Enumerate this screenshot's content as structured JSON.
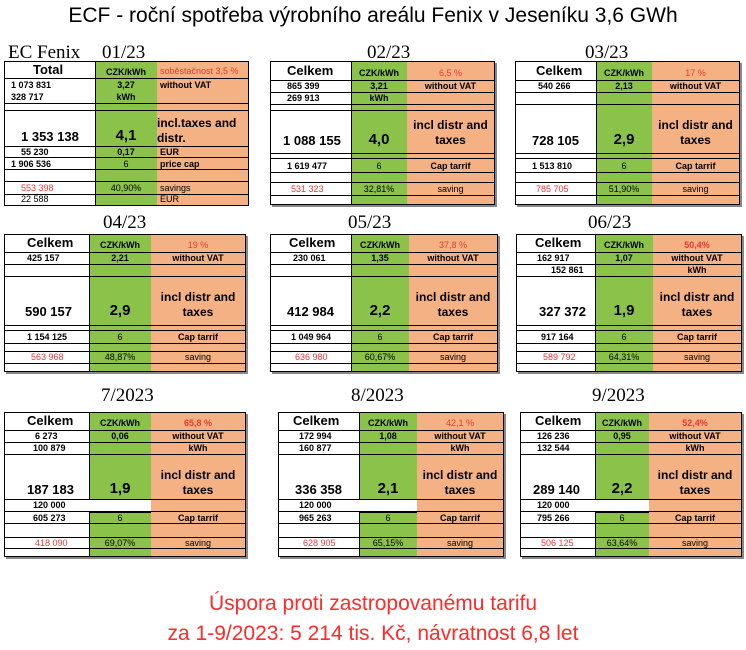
{
  "title": "ECF - roční spotřeba výrobního areálu Fenix v Jeseníku 3,6 GWh",
  "ec_label": "EC Fenix",
  "months": [
    {
      "label": "01/23",
      "header": "Total",
      "price_hdr": "CZK/kWh",
      "pct": "soběstačnost 3,5 %",
      "r1": "1 073 831",
      "r1p": "3,27",
      "r1n": "without VAT",
      "r2": "328 717",
      "r2p": "kWh",
      "main": "1 353 138",
      "mainp": "4,1",
      "mainn": "incl.taxes and distr.",
      "eur": "55 230",
      "eurp": "0,17",
      "eurn": "EUR",
      "cap": "1 906 536",
      "capp": "6",
      "capn": "price cap",
      "sav": "553 398",
      "savp": "40,90%",
      "savn": "savings",
      "eur2": "22 588",
      "eur2n": "EUR"
    },
    {
      "label": "02/23",
      "header": "Celkem",
      "price_hdr": "CZK/kWh",
      "pct": "6,5 %",
      "r1": "865 399",
      "r1p": "3,21",
      "r1n": "without  VAT",
      "r2": "269 913",
      "r2p": "kWh",
      "main": "1 088 155",
      "mainp": "4,0",
      "mainn": "incl distr and taxes",
      "cap": "1 619 477",
      "capp": "6",
      "capn": "Cap tarrif",
      "sav": "531 323",
      "savp": "32,81%",
      "savn": "saving"
    },
    {
      "label": "03/23",
      "header": "Celkem",
      "price_hdr": "CZK/kWh",
      "pct": "17 %",
      "r1": "540 266",
      "r1p": "2,13",
      "r1n": "without  VAT",
      "main": "728 105",
      "mainp": "2,9",
      "mainn": "incl distr and taxes",
      "cap": "1 513 810",
      "capp": "6",
      "capn": "Cap tarrif",
      "sav": "785 705",
      "savp": "51,90%",
      "savn": "saving"
    },
    {
      "label": "04/23",
      "header": "Celkem",
      "price_hdr": "CZK/kWh",
      "pct": "19 %",
      "r1": "425 157",
      "r1p": "2,21",
      "r1n": "without  VAT",
      "main": "590 157",
      "mainp": "2,9",
      "mainn": "incl distr and taxes",
      "cap": "1 154 125",
      "capp": "6",
      "capn": "Cap tarrif",
      "sav": "563 968",
      "savp": "48,87%",
      "savn": "saving"
    },
    {
      "label": "05/23",
      "header": "Celkem",
      "price_hdr": "CZK/kWh",
      "pct": "37,8 %",
      "r1": "230 061",
      "r1p": "1,35",
      "r1n": "without  VAT",
      "main": "412 984",
      "mainp": "2,2",
      "mainn": "incl distr and taxes",
      "cap": "1 049 964",
      "capp": "6",
      "capn": "Cap tarrif",
      "sav": "636 980",
      "savp": "60,67%",
      "savn": "saving"
    },
    {
      "label": "06/23",
      "header": "Celkem",
      "price_hdr": "CZK/kWh",
      "pct": "50,4%",
      "r1": "162 917",
      "r1p": "1,07",
      "r1n": "without  VAT",
      "r2": "152 861",
      "r2n": "kWh",
      "main": "327 372",
      "mainp": "1,9",
      "mainn": "incl distr and taxes",
      "cap": "917 164",
      "capp": "6",
      "capn": "Cap tarrif",
      "sav": "589 792",
      "savp": "64,31%",
      "savn": "saving"
    },
    {
      "label": "7/2023",
      "header": "Celkem",
      "price_hdr": "CZK/kWh",
      "pct": "65,8 %",
      "r1": "6 273",
      "r1p": "0,06",
      "r1n": "without  VAT",
      "r2": "100 879",
      "r2n": "kWh",
      "main": "187 183",
      "mainp": "1,9",
      "mainn": "incl distr and taxes",
      "r3": "120 000",
      "cap": "605 273",
      "capp": "6",
      "capn": "Cap tarrif",
      "sav": "418 090",
      "savp": "69,07%",
      "savn": "saving"
    },
    {
      "label": "8/2023",
      "header": "Celkem",
      "price_hdr": "CZK/kWh",
      "pct": "42,1 %",
      "r1": "172 994",
      "r1p": "1,08",
      "r1n": "without  VAT",
      "r2": "160 877",
      "r2n": "kWh",
      "main": "336 358",
      "mainp": "2,1",
      "mainn": "incl distr and taxes",
      "r3": "120 000",
      "cap": "965 263",
      "capp": "6",
      "capn": "Cap tarrif",
      "sav": "628 905",
      "savp": "65,15%",
      "savn": "saving"
    },
    {
      "label": "9/2023",
      "header": "Celkem",
      "price_hdr": "CZK/kWh",
      "pct": "52,4%",
      "r1": "126 236",
      "r1p": "0,95",
      "r1n": "without  VAT",
      "r2": "132 544",
      "r2n": "kWh",
      "main": "289 140",
      "mainp": "2,2",
      "mainn": "incl distr and taxes",
      "r3": "120 000",
      "cap": "795 266",
      "capp": "6",
      "capn": "Cap tarrif",
      "sav": "506 125",
      "savp": "63,64%",
      "savn": "saving"
    }
  ],
  "bottom_line1": "Úspora proti zastropovanému tarifu",
  "bottom_line2": "za 1-9/2023: 5 214 tis. Kč, návratnost 6,8 let"
}
